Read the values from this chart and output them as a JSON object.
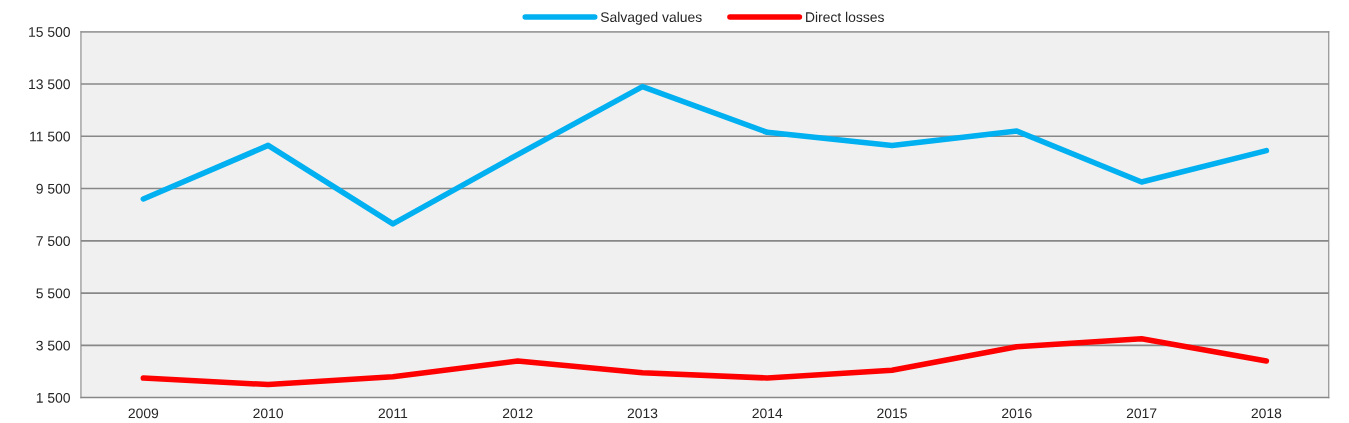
{
  "chart_data": {
    "type": "line",
    "categories": [
      "2009",
      "2010",
      "2011",
      "2012",
      "2013",
      "2014",
      "2015",
      "2016",
      "2017",
      "2018"
    ],
    "series": [
      {
        "name": "Salvaged values",
        "color": "#00b0f0",
        "values": [
          9100,
          11150,
          8150,
          10800,
          13400,
          11650,
          11150,
          11700,
          9750,
          10950
        ]
      },
      {
        "name": "Direct losses",
        "color": "#ff0000",
        "values": [
          2250,
          2000,
          2300,
          2900,
          2450,
          2250,
          2550,
          3450,
          3750,
          2900
        ]
      }
    ],
    "ylim": [
      1500,
      15500
    ],
    "yticks": [
      {
        "value": 1500,
        "label": "1 500"
      },
      {
        "value": 3500,
        "label": "3 500"
      },
      {
        "value": 5500,
        "label": "5 500"
      },
      {
        "value": 7500,
        "label": "7 500"
      },
      {
        "value": 9500,
        "label": "9 500"
      },
      {
        "value": 11500,
        "label": "11 500"
      },
      {
        "value": 13500,
        "label": "13 500"
      },
      {
        "value": 15500,
        "label": "15 500"
      }
    ],
    "grid": "y",
    "legend": "top",
    "marker": "none",
    "line_style": "solid"
  }
}
